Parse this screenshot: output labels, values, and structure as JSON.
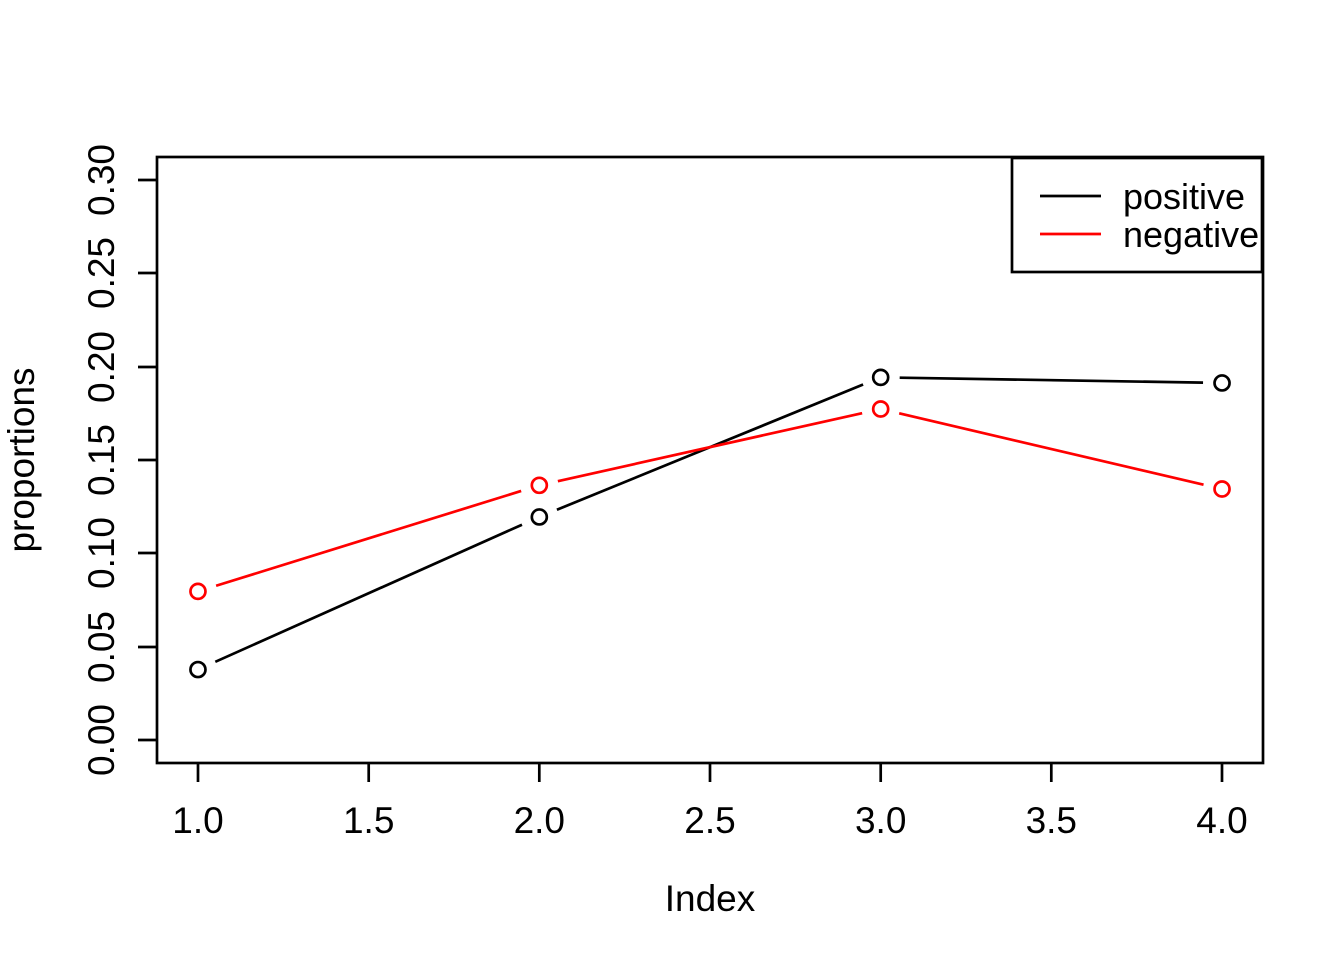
{
  "figure": {
    "background": "#FFFFFF",
    "box_color": "#000000",
    "text_color": "#000000"
  },
  "chart_data": {
    "type": "line",
    "title": "",
    "xlabel": "Index",
    "ylabel": "proportions",
    "x": [
      1,
      2,
      3,
      4
    ],
    "series": [
      {
        "name": "positive",
        "color": "#000000",
        "marker": "open-circle",
        "values": [
          0.038,
          0.12,
          0.195,
          0.192
        ]
      },
      {
        "name": "negative",
        "color": "#FF0000",
        "marker": "open-circle",
        "values": [
          0.08,
          0.137,
          0.178,
          0.135
        ]
      }
    ],
    "xlim": [
      0.88,
      4.12
    ],
    "ylim": [
      -0.0122,
      0.3134
    ],
    "x_ticks": {
      "values": [
        1.0,
        1.5,
        2.0,
        2.5,
        3.0,
        3.5,
        4.0
      ],
      "labels": [
        "1.0",
        "1.5",
        "2.0",
        "2.5",
        "3.0",
        "3.5",
        "4.0"
      ]
    },
    "y_ticks": {
      "values": [
        0.0,
        0.05,
        0.1,
        0.15,
        0.2,
        0.25,
        0.3
      ],
      "labels": [
        "0.00",
        "0.05",
        "0.10",
        "0.15",
        "0.20",
        "0.25",
        "0.30"
      ]
    },
    "grid": false,
    "line_type": "both-with-gaps",
    "legend": {
      "position": "topright",
      "entries": [
        {
          "label": "positive",
          "color": "#000000"
        },
        {
          "label": "negative",
          "color": "#FF0000"
        }
      ]
    }
  }
}
